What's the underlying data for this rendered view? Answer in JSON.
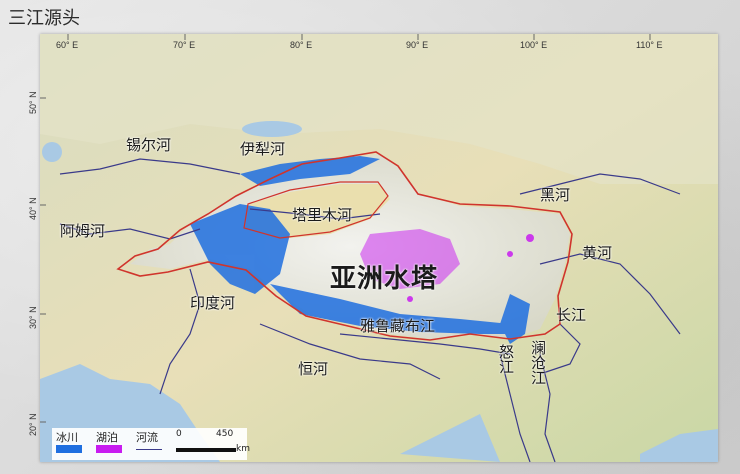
{
  "page_title": "三江源头",
  "longitude_labels": [
    "60° E",
    "70° E",
    "80° E",
    "90° E",
    "100° E",
    "110° E"
  ],
  "latitude_labels": [
    "50° N",
    "40° N",
    "30° N",
    "20° N"
  ],
  "places": {
    "xierhe": "锡尔河",
    "yilihe": "伊犁河",
    "amuhe": "阿姆河",
    "talimuhe": "塔里木河",
    "heihe": "黑河",
    "huanghe": "黄河",
    "yazhoushuita": "亚洲水塔",
    "yinduhe": "印度河",
    "yaluzangbujiang": "雅鲁藏布江",
    "changjiang": "长江",
    "henghe": "恒河",
    "nujiang": "怒江",
    "lancangjiang": "澜沧江"
  },
  "legend": {
    "glacier": "冰川",
    "lake": "湖泊",
    "river": "河流",
    "scale_zero": "0",
    "scale_value": "450",
    "scale_unit": "km"
  },
  "colors": {
    "glacier": "#1f6fe0",
    "lake": "#c81cf0",
    "boundary": "#d0342c",
    "river": "#3a3a8a",
    "sea": "#a9c9e4"
  }
}
